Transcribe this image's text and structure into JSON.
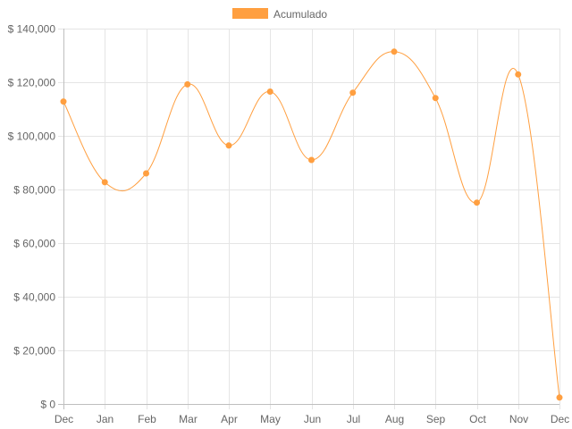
{
  "chart_data": {
    "type": "line",
    "categories": [
      "Dec",
      "Jan",
      "Feb",
      "Mar",
      "Apr",
      "May",
      "Jun",
      "Jul",
      "Aug",
      "Sep",
      "Oct",
      "Nov",
      "Dec"
    ],
    "series": [
      {
        "name": "Acumulado",
        "values": [
          112800,
          82700,
          86000,
          119200,
          96400,
          116500,
          91000,
          116100,
          131400,
          114100,
          75100,
          122900,
          2400
        ]
      }
    ],
    "title": "",
    "xlabel": "",
    "ylabel": "",
    "ylim": [
      0,
      140000
    ],
    "y_ticks": [
      0,
      20000,
      40000,
      60000,
      80000,
      100000,
      120000,
      140000
    ],
    "y_tick_labels": [
      "$ 0",
      "$ 20,000",
      "$ 40,000",
      "$ 60,000",
      "$ 80,000",
      "$ 100,000",
      "$ 120,000",
      "$ 140,000"
    ],
    "grid": true,
    "legend_position": "top-center",
    "colors": {
      "line": "#ff9f40",
      "point": "#ff9f40",
      "legend_box": "#ff9f40",
      "grid": "#e5e5e5",
      "axis": "#bfbfbf",
      "text": "#666666"
    }
  }
}
